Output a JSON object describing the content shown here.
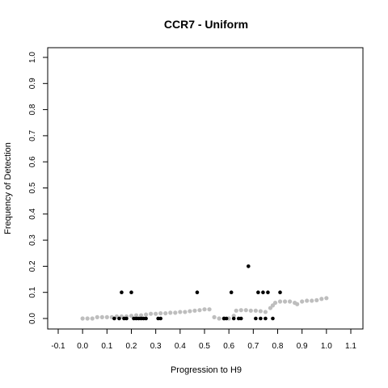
{
  "chart_data": {
    "type": "scatter",
    "title": "CCR7 - Uniform",
    "xlabel": "Progression to H9",
    "ylabel": "Frequency of Detection",
    "xlim": [
      -0.1,
      1.1
    ],
    "ylim": [
      0.0,
      1.0
    ],
    "x_ticks": [
      "-0.1",
      "0.0",
      "0.1",
      "0.2",
      "0.3",
      "0.4",
      "0.5",
      "0.6",
      "0.7",
      "0.8",
      "0.9",
      "1.0",
      "1.1"
    ],
    "y_ticks": [
      "0.0",
      "0.1",
      "0.2",
      "0.3",
      "0.4",
      "0.5",
      "0.6",
      "0.7",
      "0.8",
      "0.9",
      "1.0"
    ],
    "grid": false,
    "legend": "none",
    "series": [
      {
        "color": "#bebebe",
        "points": [
          [
            0.0,
            0.0
          ],
          [
            0.02,
            0.0
          ],
          [
            0.04,
            0.0
          ],
          [
            0.06,
            0.005
          ],
          [
            0.08,
            0.005
          ],
          [
            0.1,
            0.005
          ],
          [
            0.12,
            0.005
          ],
          [
            0.14,
            0.008
          ],
          [
            0.16,
            0.008
          ],
          [
            0.18,
            0.008
          ],
          [
            0.2,
            0.01
          ],
          [
            0.22,
            0.012
          ],
          [
            0.24,
            0.012
          ],
          [
            0.26,
            0.015
          ],
          [
            0.28,
            0.018
          ],
          [
            0.3,
            0.018
          ],
          [
            0.32,
            0.02
          ],
          [
            0.34,
            0.02
          ],
          [
            0.36,
            0.022
          ],
          [
            0.38,
            0.022
          ],
          [
            0.4,
            0.025
          ],
          [
            0.42,
            0.025
          ],
          [
            0.44,
            0.028
          ],
          [
            0.46,
            0.03
          ],
          [
            0.48,
            0.032
          ],
          [
            0.5,
            0.035
          ],
          [
            0.52,
            0.035
          ],
          [
            0.54,
            0.005
          ],
          [
            0.56,
            0.0
          ],
          [
            0.58,
            0.0
          ],
          [
            0.6,
            0.0
          ],
          [
            0.62,
            0.01
          ],
          [
            0.63,
            0.03
          ],
          [
            0.65,
            0.032
          ],
          [
            0.67,
            0.032
          ],
          [
            0.69,
            0.03
          ],
          [
            0.71,
            0.03
          ],
          [
            0.73,
            0.028
          ],
          [
            0.75,
            0.025
          ],
          [
            0.77,
            0.04
          ],
          [
            0.78,
            0.05
          ],
          [
            0.79,
            0.06
          ],
          [
            0.81,
            0.065
          ],
          [
            0.83,
            0.065
          ],
          [
            0.85,
            0.065
          ],
          [
            0.87,
            0.06
          ],
          [
            0.88,
            0.055
          ],
          [
            0.9,
            0.065
          ],
          [
            0.92,
            0.068
          ],
          [
            0.94,
            0.068
          ],
          [
            0.96,
            0.07
          ],
          [
            0.98,
            0.075
          ],
          [
            1.0,
            0.078
          ]
        ]
      },
      {
        "color": "#000000",
        "points": [
          [
            0.13,
            0.0
          ],
          [
            0.15,
            0.0
          ],
          [
            0.16,
            0.1
          ],
          [
            0.17,
            0.0
          ],
          [
            0.18,
            0.0
          ],
          [
            0.2,
            0.1
          ],
          [
            0.21,
            0.0
          ],
          [
            0.22,
            0.0
          ],
          [
            0.23,
            0.0
          ],
          [
            0.24,
            0.0
          ],
          [
            0.25,
            0.0
          ],
          [
            0.26,
            0.0
          ],
          [
            0.31,
            0.0
          ],
          [
            0.32,
            0.0
          ],
          [
            0.47,
            0.1
          ],
          [
            0.58,
            0.0
          ],
          [
            0.59,
            0.0
          ],
          [
            0.61,
            0.1
          ],
          [
            0.62,
            0.0
          ],
          [
            0.64,
            0.0
          ],
          [
            0.65,
            0.0
          ],
          [
            0.68,
            0.2
          ],
          [
            0.71,
            0.0
          ],
          [
            0.72,
            0.1
          ],
          [
            0.73,
            0.0
          ],
          [
            0.74,
            0.1
          ],
          [
            0.75,
            0.0
          ],
          [
            0.76,
            0.1
          ],
          [
            0.78,
            0.0
          ],
          [
            0.81,
            0.1
          ]
        ]
      }
    ]
  }
}
